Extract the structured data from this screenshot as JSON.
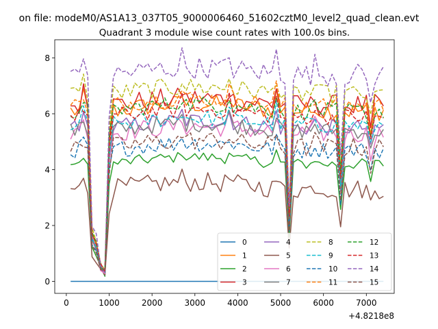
{
  "chart_data": {
    "type": "line",
    "suptitle": "on file: modeM0/AS1A13_037T05_9000006460_51602cztM0_level2_quad_clean.evt",
    "title": "Quadrant 3 module wise count rates with 100.0s bins.",
    "xlabel": "",
    "ylabel": "",
    "x_offset_label": "+4.8218e8",
    "xlim": [
      -270,
      7650
    ],
    "ylim": [
      -0.43,
      8.65
    ],
    "xticks": [
      0,
      1000,
      2000,
      3000,
      4000,
      5000,
      6000,
      7000
    ],
    "yticks": [
      0,
      2,
      4,
      6,
      8
    ],
    "x": [
      100,
      200,
      300,
      400,
      500,
      600,
      700,
      800,
      900,
      1000,
      1100,
      1200,
      1300,
      1400,
      1500,
      1600,
      1700,
      1800,
      1900,
      2000,
      2100,
      2200,
      2300,
      2400,
      2500,
      2600,
      2700,
      2800,
      2900,
      3000,
      3100,
      3200,
      3300,
      3400,
      3500,
      3600,
      3700,
      3800,
      3900,
      4000,
      4100,
      4200,
      4300,
      4400,
      4500,
      4600,
      4700,
      4800,
      4900,
      5000,
      5100,
      5200,
      5300,
      5400,
      5500,
      5600,
      5700,
      5800,
      5900,
      6000,
      6100,
      6200,
      6300,
      6400,
      6500,
      6600,
      6700,
      6800,
      6900,
      7000,
      7100,
      7200,
      7300,
      7400
    ],
    "legend": {
      "position": "lower-right",
      "columns": 4
    },
    "series": [
      {
        "name": "0",
        "color": "#1f77b4",
        "dash": "solid",
        "base": 0.0,
        "amp": 0.0
      },
      {
        "name": "1",
        "color": "#ff7f0e",
        "dash": "solid",
        "base": 6.1,
        "amp": 0.35
      },
      {
        "name": "2",
        "color": "#2ca02c",
        "dash": "solid",
        "base": 4.2,
        "amp": 0.2
      },
      {
        "name": "3",
        "color": "#d62728",
        "dash": "solid",
        "base": 6.3,
        "amp": 0.4
      },
      {
        "name": "4",
        "color": "#9467bd",
        "dash": "solid",
        "base": 5.5,
        "amp": 0.3
      },
      {
        "name": "5",
        "color": "#8c564b",
        "dash": "solid",
        "base": 3.3,
        "amp": 0.35
      },
      {
        "name": "6",
        "color": "#e377c2",
        "dash": "solid",
        "base": 5.3,
        "amp": 0.35
      },
      {
        "name": "7",
        "color": "#7f7f7f",
        "dash": "solid",
        "base": 5.4,
        "amp": 0.3
      },
      {
        "name": "8",
        "color": "#bcbd22",
        "dash": "dashed",
        "base": 6.7,
        "amp": 0.35
      },
      {
        "name": "9",
        "color": "#17becf",
        "dash": "dashed",
        "base": 5.6,
        "amp": 0.3
      },
      {
        "name": "10",
        "color": "#1f77b4",
        "dash": "dashed",
        "base": 4.7,
        "amp": 0.3
      },
      {
        "name": "11",
        "color": "#ff7f0e",
        "dash": "dashed",
        "base": 6.3,
        "amp": 0.3
      },
      {
        "name": "12",
        "color": "#2ca02c",
        "dash": "dashed",
        "base": 6.1,
        "amp": 0.3
      },
      {
        "name": "13",
        "color": "#d62728",
        "dash": "dashed",
        "base": 5.9,
        "amp": 0.3
      },
      {
        "name": "14",
        "color": "#9467bd",
        "dash": "dashed",
        "base": 7.4,
        "amp": 0.4
      },
      {
        "name": "15",
        "color": "#8c564b",
        "dash": "dashed",
        "base": 4.8,
        "amp": 0.35
      }
    ],
    "features": {
      "dips": [
        {
          "x": 600,
          "factor": 0.28
        },
        {
          "x": 700,
          "factor": 0.22
        },
        {
          "x": 800,
          "factor": 0.06
        },
        {
          "x": 900,
          "factor": 0.03
        },
        {
          "x": 1000,
          "factor": 0.82
        },
        {
          "x": 5200,
          "factor": 0.38
        },
        {
          "x": 6400,
          "factor": 0.62
        },
        {
          "x": 7100,
          "factor": 0.85
        }
      ],
      "spikes": [
        {
          "x": 400,
          "factor": 1.07
        },
        {
          "x": 4900,
          "factor": 1.1
        },
        {
          "x": 5800,
          "factor": 1.05
        },
        {
          "x": 2700,
          "factor": 1.05
        },
        {
          "x": 3800,
          "factor": 1.06
        }
      ]
    }
  }
}
